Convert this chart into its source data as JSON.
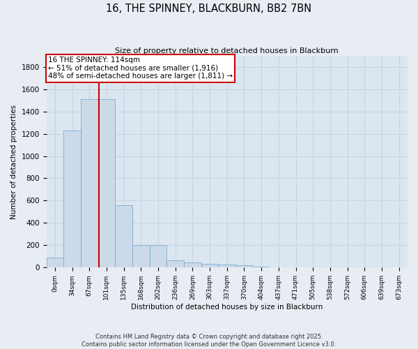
{
  "title": "16, THE SPINNEY, BLACKBURN, BB2 7BN",
  "subtitle": "Size of property relative to detached houses in Blackburn",
  "xlabel": "Distribution of detached houses by size in Blackburn",
  "ylabel": "Number of detached properties",
  "bar_color": "#ccd9e8",
  "bar_edge_color": "#7aafd4",
  "fig_bg_color": "#e8edf4",
  "ax_bg_color": "#dce6f0",
  "grid_color": "#c8d4e0",
  "categories": [
    "0sqm",
    "34sqm",
    "67sqm",
    "101sqm",
    "135sqm",
    "168sqm",
    "202sqm",
    "236sqm",
    "269sqm",
    "303sqm",
    "337sqm",
    "370sqm",
    "404sqm",
    "437sqm",
    "471sqm",
    "505sqm",
    "538sqm",
    "572sqm",
    "606sqm",
    "639sqm",
    "673sqm"
  ],
  "values": [
    90,
    1230,
    1510,
    1510,
    560,
    205,
    205,
    65,
    45,
    35,
    25,
    18,
    8,
    2,
    1,
    1,
    0,
    0,
    0,
    0,
    0
  ],
  "ylim": [
    0,
    1900
  ],
  "yticks": [
    0,
    200,
    400,
    600,
    800,
    1000,
    1200,
    1400,
    1600,
    1800
  ],
  "vline_x": 2.55,
  "vline_color": "#cc0000",
  "property_label": "16 THE SPINNEY: 114sqm",
  "annotation_line1": "← 51% of detached houses are smaller (1,916)",
  "annotation_line2": "48% of semi-detached houses are larger (1,811) →",
  "ann_box_fc": "#ffffff",
  "ann_box_ec": "#cc0000",
  "footer_line1": "Contains HM Land Registry data © Crown copyright and database right 2025.",
  "footer_line2": "Contains public sector information licensed under the Open Government Licence v3.0."
}
